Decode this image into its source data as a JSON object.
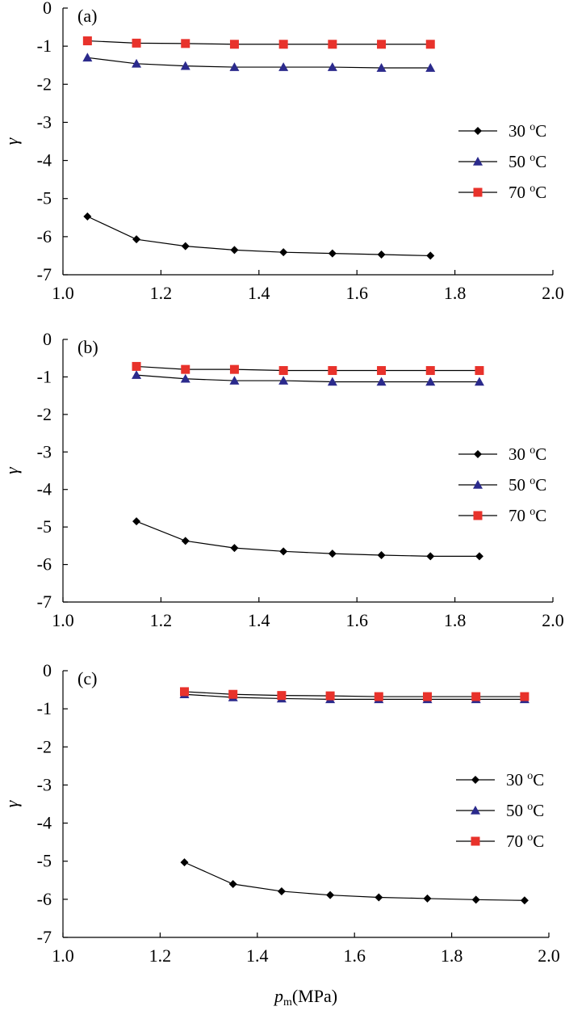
{
  "chart_data": [
    {
      "type": "line",
      "panel_label": "(a)",
      "ylabel": "γ",
      "xlim": [
        1.0,
        2.0
      ],
      "ylim": [
        -7,
        0
      ],
      "xticks": [
        "1.0",
        "1.2",
        "1.4",
        "1.6",
        "1.8",
        "2.0"
      ],
      "yticks": [
        "0",
        "-1",
        "-2",
        "-3",
        "-4",
        "-5",
        "-6",
        "-7"
      ],
      "legend_position": "right",
      "series": [
        {
          "name": "30 °C",
          "marker": "diamond",
          "color": "#000000",
          "x": [
            1.05,
            1.15,
            1.25,
            1.35,
            1.45,
            1.55,
            1.65,
            1.75
          ],
          "y": [
            -5.47,
            -6.07,
            -6.25,
            -6.35,
            -6.41,
            -6.44,
            -6.47,
            -6.5
          ]
        },
        {
          "name": "50 °C",
          "marker": "triangle",
          "color": "#2b2a8c",
          "x": [
            1.05,
            1.15,
            1.25,
            1.35,
            1.45,
            1.55,
            1.65,
            1.75
          ],
          "y": [
            -1.3,
            -1.46,
            -1.52,
            -1.55,
            -1.55,
            -1.55,
            -1.57,
            -1.57
          ]
        },
        {
          "name": "70 °C",
          "marker": "square",
          "color": "#e8322b",
          "x": [
            1.05,
            1.15,
            1.25,
            1.35,
            1.45,
            1.55,
            1.65,
            1.75
          ],
          "y": [
            -0.86,
            -0.92,
            -0.93,
            -0.95,
            -0.95,
            -0.95,
            -0.95,
            -0.95
          ]
        }
      ]
    },
    {
      "type": "line",
      "panel_label": "(b)",
      "ylabel": "γ",
      "xlim": [
        1.0,
        2.0
      ],
      "ylim": [
        -7,
        0
      ],
      "xticks": [
        "1.0",
        "1.2",
        "1.4",
        "1.6",
        "1.8",
        "2.0"
      ],
      "yticks": [
        "0",
        "-1",
        "-2",
        "-3",
        "-4",
        "-5",
        "-6",
        "-7"
      ],
      "legend_position": "right",
      "series": [
        {
          "name": "30 °C",
          "marker": "diamond",
          "color": "#000000",
          "x": [
            1.15,
            1.25,
            1.35,
            1.45,
            1.55,
            1.65,
            1.75,
            1.85
          ],
          "y": [
            -4.85,
            -5.37,
            -5.56,
            -5.65,
            -5.71,
            -5.75,
            -5.78,
            -5.78
          ]
        },
        {
          "name": "50 °C",
          "marker": "triangle",
          "color": "#2b2a8c",
          "x": [
            1.15,
            1.25,
            1.35,
            1.45,
            1.55,
            1.65,
            1.75,
            1.85
          ],
          "y": [
            -0.95,
            -1.05,
            -1.1,
            -1.1,
            -1.13,
            -1.13,
            -1.13,
            -1.13
          ]
        },
        {
          "name": "70 °C",
          "marker": "square",
          "color": "#e8322b",
          "x": [
            1.15,
            1.25,
            1.35,
            1.45,
            1.55,
            1.65,
            1.75,
            1.85
          ],
          "y": [
            -0.72,
            -0.8,
            -0.8,
            -0.83,
            -0.83,
            -0.83,
            -0.83,
            -0.83
          ]
        }
      ]
    },
    {
      "type": "line",
      "panel_label": "(c)",
      "ylabel": "γ",
      "xlabel_main": "p",
      "xlabel_sub": "m",
      "xlabel_unit": "(MPa)",
      "xlim": [
        1.0,
        2.0
      ],
      "ylim": [
        -7,
        0
      ],
      "xticks": [
        "1.0",
        "1.2",
        "1.4",
        "1.6",
        "1.8",
        "2.0"
      ],
      "yticks": [
        "0",
        "-1",
        "-2",
        "-3",
        "-4",
        "-5",
        "-6",
        "-7"
      ],
      "legend_position": "right",
      "series": [
        {
          "name": "30 °C",
          "marker": "diamond",
          "color": "#000000",
          "x": [
            1.25,
            1.35,
            1.45,
            1.55,
            1.65,
            1.75,
            1.85,
            1.95
          ],
          "y": [
            -5.03,
            -5.6,
            -5.79,
            -5.89,
            -5.95,
            -5.98,
            -6.01,
            -6.03
          ]
        },
        {
          "name": "50 °C",
          "marker": "triangle",
          "color": "#2b2a8c",
          "x": [
            1.25,
            1.35,
            1.45,
            1.55,
            1.65,
            1.75,
            1.85,
            1.95
          ],
          "y": [
            -0.62,
            -0.7,
            -0.73,
            -0.75,
            -0.75,
            -0.75,
            -0.75,
            -0.75
          ]
        },
        {
          "name": "70 °C",
          "marker": "square",
          "color": "#e8322b",
          "x": [
            1.25,
            1.35,
            1.45,
            1.55,
            1.65,
            1.75,
            1.85,
            1.95
          ],
          "y": [
            -0.55,
            -0.62,
            -0.65,
            -0.66,
            -0.68,
            -0.68,
            -0.68,
            -0.68
          ]
        }
      ]
    }
  ]
}
